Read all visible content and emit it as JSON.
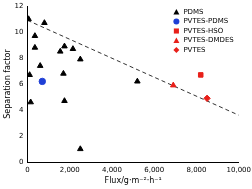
{
  "chart_data": {
    "type": "scatter",
    "x_label": "Flux/g·m⁻²·h⁻¹",
    "y_label": "Separation factor",
    "xlim": [
      0,
      10000
    ],
    "xticks": [
      0,
      2000,
      4000,
      6000,
      8000,
      10000
    ],
    "ylim": [
      0,
      12
    ],
    "yticks": [
      0,
      2,
      4,
      6,
      8,
      10,
      12
    ],
    "grid": false,
    "legend": "upper right",
    "series": [
      {
        "name": "PDMS",
        "color": "#000000",
        "marker": "triangle",
        "x": [
          50,
          350,
          350,
          100,
          150,
          600,
          800,
          1550,
          1750,
          2150,
          2500,
          1700,
          1750,
          2500,
          5200
        ],
        "values": [
          11.0,
          9.7,
          8.8,
          6.7,
          4.6,
          7.4,
          10.7,
          8.5,
          8.9,
          8.7,
          7.9,
          6.8,
          4.7,
          1.0,
          6.2
        ]
      },
      {
        "name": "PVTES-PDMS",
        "color": "#1f3fd6",
        "marker": "circle",
        "x": [
          700
        ],
        "values": [
          6.2
        ]
      },
      {
        "name": "PVTES-HSO",
        "color": "#e8201a",
        "marker": "square",
        "x": [
          8200
        ],
        "values": [
          6.7
        ]
      },
      {
        "name": "PVTES-DMDES",
        "color": "#e8201a",
        "marker": "triangle",
        "x": [
          6900
        ],
        "values": [
          5.9
        ]
      },
      {
        "name": "PVTES",
        "color": "#e8201a",
        "marker": "diamond",
        "x": [
          8500
        ],
        "values": [
          4.9
        ]
      },
      {
        "type": "line",
        "line_style": "dashed",
        "color": "#333333",
        "x": [
          0,
          10000
        ],
        "values": [
          10.9,
          3.6
        ]
      }
    ]
  }
}
